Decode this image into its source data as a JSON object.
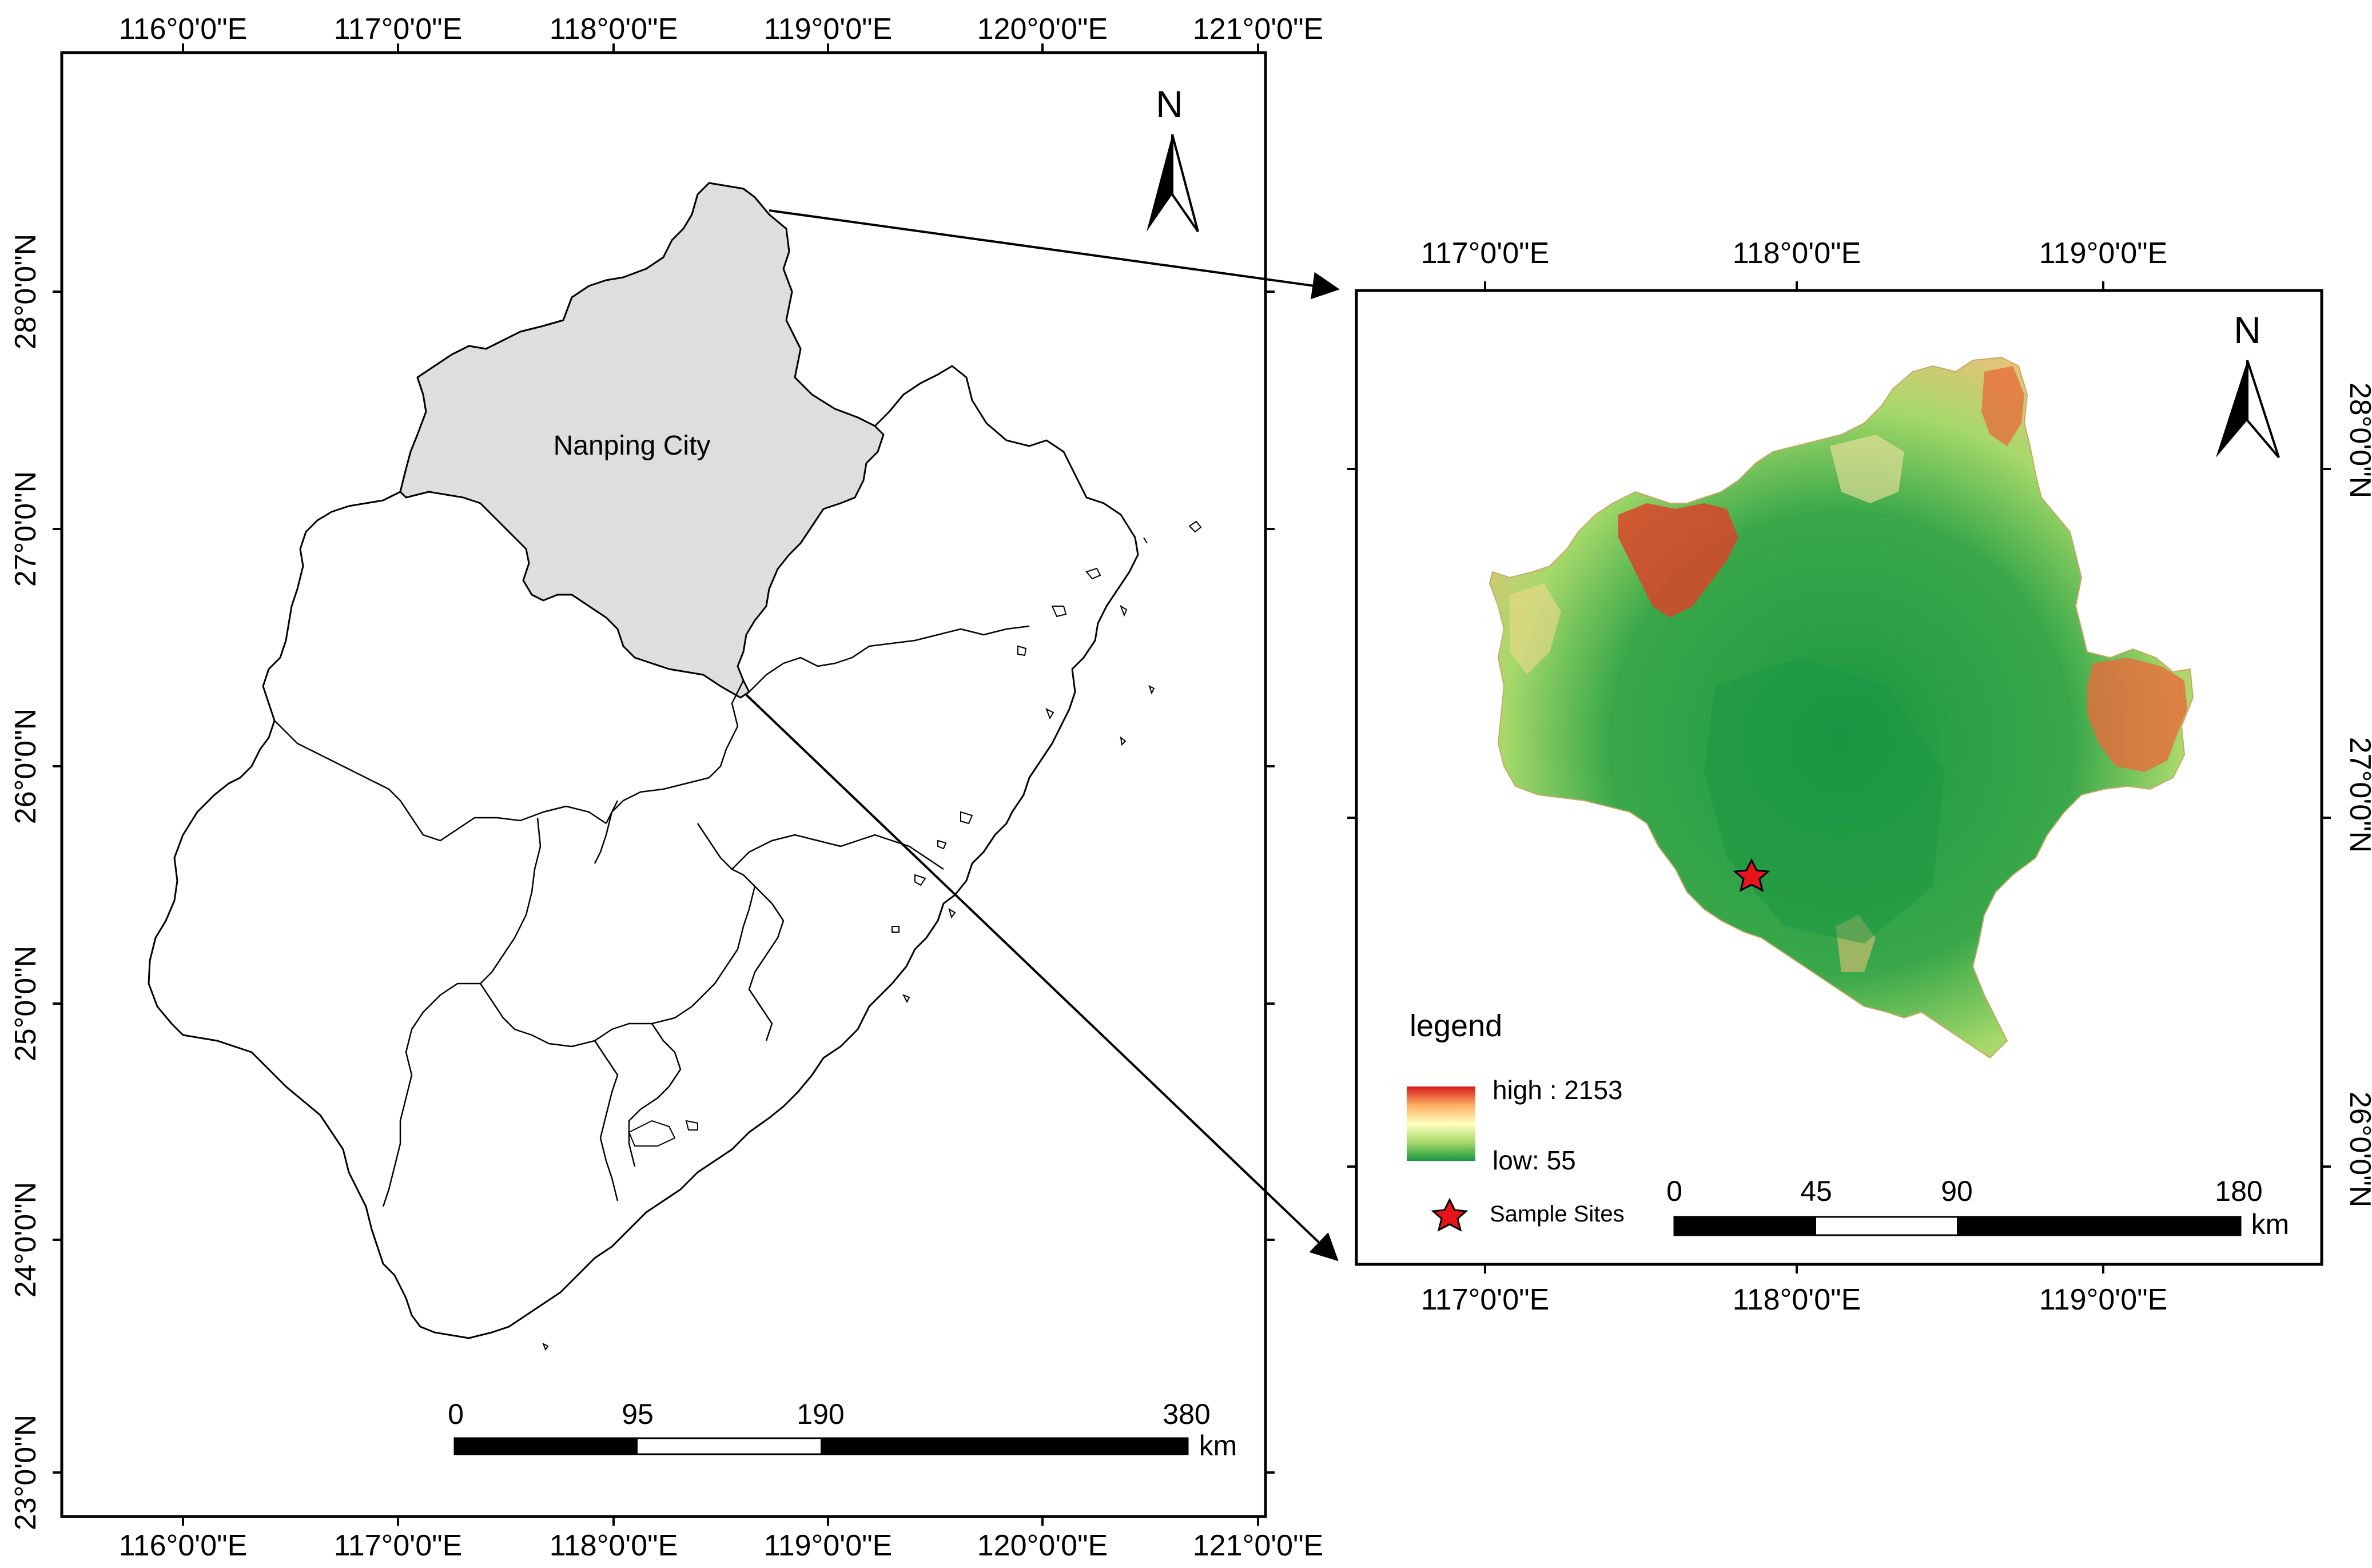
{
  "left_map": {
    "lon_labels": [
      "116°0'0\"E",
      "117°0'0\"E",
      "118°0'0\"E",
      "119°0'0\"E",
      "120°0'0\"E",
      "121°0'0\"E"
    ],
    "lat_labels": [
      "28°0'0\"N",
      "27°0'0\"N",
      "26°0'0\"N",
      "25°0'0\"N",
      "24°0'0\"N",
      "23°0'0\"N"
    ],
    "region_label": "Nanping City",
    "north": "N",
    "scale": {
      "ticks": [
        "0",
        "95",
        "190",
        "380"
      ],
      "unit": "km"
    }
  },
  "right_map": {
    "lon_labels": [
      "117°0'0\"E",
      "118°0'0\"E",
      "119°0'0\"E"
    ],
    "lat_labels": [
      "28°0'0\"N",
      "27°0'0\"N",
      "26°0'0\"N"
    ],
    "north": "N",
    "legend": {
      "title": "legend",
      "high": "high : 2153",
      "low": "low: 55",
      "sample": "Sample Sites",
      "colors": {
        "high": "#d7191c",
        "mid": "#ffffbf",
        "low": "#1a9641"
      }
    },
    "scale": {
      "ticks": [
        "0",
        "45",
        "90",
        "180"
      ],
      "unit": "km"
    }
  }
}
